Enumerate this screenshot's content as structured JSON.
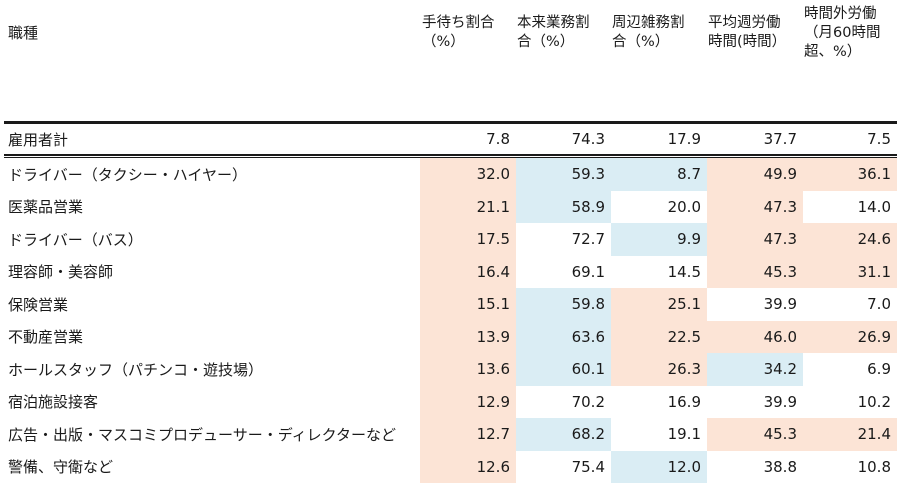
{
  "table": {
    "row_header_label": "職種",
    "columns": [
      {
        "line1": "手待ち割合",
        "line2": "（%）",
        "line3": ""
      },
      {
        "line1": "本来業務割",
        "line2": "合（%）",
        "line3": ""
      },
      {
        "line1": "周辺雑務割",
        "line2": "合（%）",
        "line3": ""
      },
      {
        "line1": "平均週労働",
        "line2": "時間(時間）",
        "line3": ""
      },
      {
        "line1": "時間外労働",
        "line2": "（月60時間",
        "line3": "超、%）"
      }
    ],
    "total": {
      "name": "雇用者計",
      "values": [
        "7.8",
        "74.3",
        "17.9",
        "37.7",
        "7.5"
      ]
    },
    "rows": [
      {
        "name": "ドライバー（タクシー・ハイヤー）",
        "values": [
          "32.0",
          "59.3",
          "8.7",
          "49.9",
          "36.1"
        ],
        "shade": [
          "hi",
          "lo",
          "lo",
          "hi",
          "hi"
        ]
      },
      {
        "name": "医薬品営業",
        "values": [
          "21.1",
          "58.9",
          "20.0",
          "47.3",
          "14.0"
        ],
        "shade": [
          "hi",
          "lo",
          "none",
          "hi",
          "none"
        ]
      },
      {
        "name": "ドライバー（バス）",
        "values": [
          "17.5",
          "72.7",
          "9.9",
          "47.3",
          "24.6"
        ],
        "shade": [
          "hi",
          "none",
          "lo",
          "hi",
          "hi"
        ]
      },
      {
        "name": "理容師・美容師",
        "values": [
          "16.4",
          "69.1",
          "14.5",
          "45.3",
          "31.1"
        ],
        "shade": [
          "hi",
          "none",
          "none",
          "hi",
          "hi"
        ]
      },
      {
        "name": "保険営業",
        "values": [
          "15.1",
          "59.8",
          "25.1",
          "39.9",
          "7.0"
        ],
        "shade": [
          "hi",
          "lo",
          "hi",
          "none",
          "none"
        ]
      },
      {
        "name": "不動産営業",
        "values": [
          "13.9",
          "63.6",
          "22.5",
          "46.0",
          "26.9"
        ],
        "shade": [
          "hi",
          "lo",
          "hi",
          "hi",
          "hi"
        ]
      },
      {
        "name": "ホールスタッフ（パチンコ・遊技場）",
        "values": [
          "13.6",
          "60.1",
          "26.3",
          "34.2",
          "6.9"
        ],
        "shade": [
          "hi",
          "lo",
          "hi",
          "lo",
          "none"
        ]
      },
      {
        "name": "宿泊施設接客",
        "values": [
          "12.9",
          "70.2",
          "16.9",
          "39.9",
          "10.2"
        ],
        "shade": [
          "hi",
          "none",
          "none",
          "none",
          "none"
        ]
      },
      {
        "name": "広告・出版・マスコミプロデューサー・ディレクターなど",
        "values": [
          "12.7",
          "68.2",
          "19.1",
          "45.3",
          "21.4"
        ],
        "shade": [
          "hi",
          "lo",
          "none",
          "hi",
          "hi"
        ]
      },
      {
        "name": "警備、守衛など",
        "values": [
          "12.6",
          "75.4",
          "12.0",
          "38.8",
          "10.8"
        ],
        "shade": [
          "hi",
          "none",
          "lo",
          "none",
          "none"
        ]
      }
    ]
  },
  "colors": {
    "high": "#fce4d6",
    "low": "#daedf4"
  }
}
